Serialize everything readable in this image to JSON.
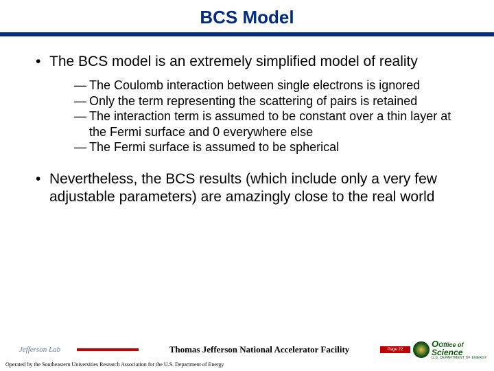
{
  "title": "BCS Model",
  "colors": {
    "title": "#002b7f",
    "rule": "#002b7f",
    "accent": "#c00000",
    "text": "#000000",
    "office_green": "#0a5a0a"
  },
  "bullets": [
    {
      "text": "The BCS model is an extremely simplified model of reality",
      "sub": [
        "The Coulomb interaction between single electrons is ignored",
        "Only the term representing the scattering of pairs is retained",
        "The interaction term is assumed to be constant over a thin layer at the Fermi surface and 0 everywhere else",
        "The Fermi surface is assumed to be spherical"
      ]
    },
    {
      "text": "Nevertheless, the BCS results (which include only a very few adjustable parameters) are amazingly close to the real world",
      "sub": []
    }
  ],
  "footer": {
    "left_logo_text": "Jefferson Lab",
    "center": "Thomas Jefferson National Accelerator Facility",
    "page_tag": "Page 22",
    "right_logo": {
      "line1_small": "Office of",
      "line2": "Science",
      "line3": "U.S. DEPARTMENT OF ENERGY"
    },
    "subline": "Operated by the Southeastern Universities Research Association for the U.S. Department of Energy"
  }
}
